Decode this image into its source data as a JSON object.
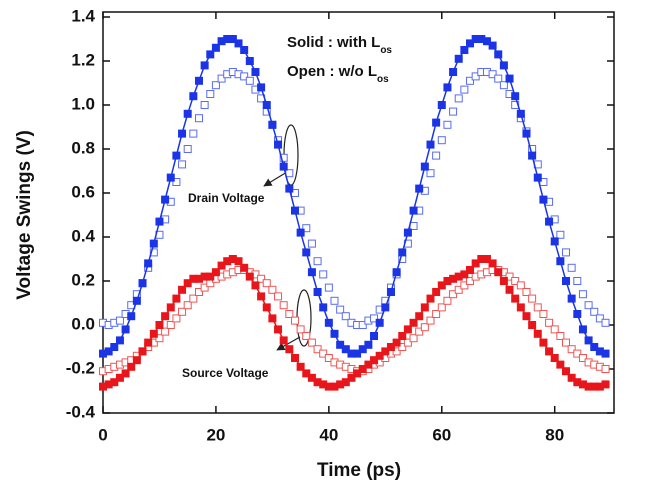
{
  "chart_data": {
    "type": "scatter",
    "x_label": "Time (ps)",
    "y_label": "Voltage Swings (V)",
    "xlim": [
      0,
      90.5
    ],
    "xticks": [
      0,
      20,
      40,
      60,
      80
    ],
    "ylim": [
      -0.4,
      1.4
    ],
    "yticks": [
      {
        "value": -0.4,
        "label": "-0.4"
      },
      {
        "value": -0.2,
        "label": "-0.2"
      },
      {
        "value": 0,
        "label": "0.0"
      },
      0.2,
      0.4,
      0.6,
      0.8,
      {
        "value": 1,
        "label": "1.0"
      },
      1.2,
      1.4
    ],
    "annotations": [
      {
        "text": "Solid : with L",
        "subscript": "os"
      },
      {
        "text": "Open : w/o L",
        "subscript": "os"
      },
      {
        "text": "Drain Voltage"
      },
      {
        "text": "Source Voltage"
      }
    ],
    "x": [
      0,
      1,
      2,
      3,
      4,
      5,
      6,
      7,
      8,
      9,
      10,
      11,
      12,
      13,
      14,
      15,
      16,
      17,
      18,
      19,
      20,
      21,
      22,
      23,
      24,
      25,
      26,
      27,
      28,
      29,
      30,
      31,
      32,
      33,
      34,
      35,
      36,
      37,
      38,
      39,
      40,
      41,
      42,
      43,
      44,
      45,
      46,
      47,
      48,
      49,
      50,
      51,
      52,
      53,
      54,
      55,
      56,
      57,
      58,
      59,
      60,
      61,
      62,
      63,
      64,
      65,
      66,
      67,
      68,
      69,
      70,
      71,
      72,
      73,
      74,
      75,
      76,
      77,
      78,
      79,
      80,
      81,
      82,
      83,
      84,
      85,
      86,
      87,
      88,
      89
    ],
    "series": [
      {
        "marker": "open",
        "color": "#5a6cf0",
        "values": [
          0.01,
          0,
          0.01,
          0.02,
          0.05,
          0.09,
          0.14,
          0.19,
          0.26,
          0.33,
          0.41,
          0.48,
          0.56,
          0.65,
          0.73,
          0.8,
          0.87,
          0.94,
          1,
          1.05,
          1.09,
          1.12,
          1.14,
          1.15,
          1.14,
          1.13,
          1.11,
          1.07,
          1.03,
          0.97,
          0.91,
          0.84,
          0.76,
          0.69,
          0.6,
          0.52,
          0.44,
          0.37,
          0.29,
          0.23,
          0.17,
          0.11,
          0.07,
          0.04,
          0.01,
          0,
          0,
          0.02,
          0.03,
          0.07,
          0.11,
          0.17,
          0.23,
          0.3,
          0.37,
          0.45,
          0.52,
          0.61,
          0.69,
          0.77,
          0.84,
          0.91,
          0.97,
          1.03,
          1.07,
          1.11,
          1.13,
          1.15,
          1.15,
          1.14,
          1.12,
          1.09,
          1.05,
          1,
          0.94,
          0.88,
          0.8,
          0.73,
          0.65,
          0.56,
          0.48,
          0.41,
          0.33,
          0.26,
          0.2,
          0.14,
          0.09,
          0.06,
          0.03,
          0.01
        ]
      },
      {
        "marker": "filled",
        "color": "#1a34e6",
        "values": [
          -0.13,
          -0.12,
          -0.1,
          -0.07,
          -0.02,
          0.04,
          0.11,
          0.19,
          0.28,
          0.37,
          0.47,
          0.57,
          0.67,
          0.77,
          0.87,
          0.96,
          1.04,
          1.11,
          1.18,
          1.23,
          1.26,
          1.29,
          1.3,
          1.3,
          1.28,
          1.25,
          1.2,
          1.15,
          1.08,
          1,
          0.91,
          0.82,
          0.72,
          0.62,
          0.52,
          0.42,
          0.33,
          0.24,
          0.15,
          0.08,
          0.01,
          -0.04,
          -0.09,
          -0.11,
          -0.13,
          -0.13,
          -0.11,
          -0.09,
          -0.05,
          0.01,
          0.08,
          0.15,
          0.24,
          0.33,
          0.42,
          0.52,
          0.62,
          0.72,
          0.82,
          0.92,
          1,
          1.08,
          1.15,
          1.21,
          1.25,
          1.28,
          1.3,
          1.3,
          1.29,
          1.27,
          1.23,
          1.18,
          1.12,
          1.04,
          0.96,
          0.87,
          0.77,
          0.67,
          0.57,
          0.47,
          0.38,
          0.29,
          0.2,
          0.12,
          0.05,
          -0.02,
          -0.07,
          -0.1,
          -0.12,
          -0.13
        ]
      },
      {
        "marker": "open",
        "color": "#ee5555",
        "values": [
          -0.21,
          -0.2,
          -0.19,
          -0.18,
          -0.17,
          -0.16,
          -0.14,
          -0.12,
          -0.1,
          -0.08,
          -0.06,
          -0.03,
          0,
          0.03,
          0.06,
          0.09,
          0.12,
          0.15,
          0.17,
          0.19,
          0.21,
          0.22,
          0.23,
          0.24,
          0.25,
          0.25,
          0.24,
          0.23,
          0.21,
          0.19,
          0.16,
          0.13,
          0.09,
          0.05,
          0.02,
          -0.02,
          -0.05,
          -0.08,
          -0.11,
          -0.13,
          -0.15,
          -0.17,
          -0.18,
          -0.19,
          -0.2,
          -0.21,
          -0.21,
          -0.2,
          -0.18,
          -0.17,
          -0.15,
          -0.13,
          -0.12,
          -0.1,
          -0.08,
          -0.06,
          -0.03,
          -0.01,
          0.02,
          0.05,
          0.08,
          0.11,
          0.14,
          0.16,
          0.18,
          0.2,
          0.22,
          0.23,
          0.24,
          0.25,
          0.25,
          0.24,
          0.22,
          0.2,
          0.18,
          0.15,
          0.12,
          0.08,
          0.05,
          0.01,
          -0.02,
          -0.05,
          -0.08,
          -0.11,
          -0.13,
          -0.15,
          -0.17,
          -0.18,
          -0.19,
          -0.2
        ]
      },
      {
        "marker": "filled",
        "color": "#e8161b",
        "values": [
          -0.28,
          -0.27,
          -0.26,
          -0.24,
          -0.22,
          -0.19,
          -0.16,
          -0.12,
          -0.08,
          -0.04,
          0,
          0.04,
          0.08,
          0.12,
          0.16,
          0.19,
          0.21,
          0.21,
          0.22,
          0.22,
          0.24,
          0.27,
          0.29,
          0.3,
          0.29,
          0.26,
          0.22,
          0.18,
          0.13,
          0.08,
          0.03,
          -0.02,
          -0.07,
          -0.11,
          -0.15,
          -0.19,
          -0.22,
          -0.24,
          -0.26,
          -0.27,
          -0.28,
          -0.28,
          -0.27,
          -0.26,
          -0.24,
          -0.22,
          -0.2,
          -0.18,
          -0.16,
          -0.14,
          -0.12,
          -0.1,
          -0.08,
          -0.05,
          -0.02,
          0.01,
          0.04,
          0.08,
          0.12,
          0.15,
          0.18,
          0.2,
          0.21,
          0.22,
          0.23,
          0.25,
          0.28,
          0.3,
          0.3,
          0.28,
          0.24,
          0.2,
          0.16,
          0.12,
          0.08,
          0.04,
          0,
          -0.04,
          -0.08,
          -0.12,
          -0.15,
          -0.18,
          -0.21,
          -0.24,
          -0.26,
          -0.27,
          -0.28,
          -0.28,
          -0.28,
          -0.27
        ]
      }
    ]
  }
}
